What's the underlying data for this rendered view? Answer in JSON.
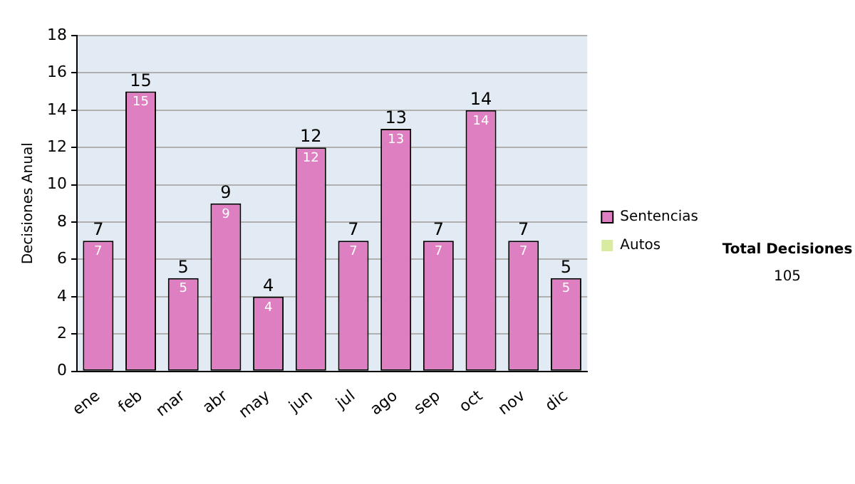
{
  "chart_data": {
    "type": "bar",
    "stacked": true,
    "ylabel": "Decisiones Anual",
    "categories": [
      "ene",
      "feb",
      "mar",
      "abr",
      "may",
      "jun",
      "jul",
      "ago",
      "sep",
      "oct",
      "nov",
      "dic"
    ],
    "series": [
      {
        "name": "Sentencias",
        "color": "#dd7fc0",
        "values": [
          7,
          15,
          5,
          9,
          4,
          12,
          7,
          13,
          7,
          14,
          7,
          5
        ],
        "value_labels": [
          "7",
          "15",
          "5",
          "9",
          "4",
          "12",
          "7",
          "13",
          "7",
          "14",
          "7",
          "5"
        ]
      },
      {
        "name": "Autos",
        "color": "#d8eba0",
        "values": [
          0,
          0,
          0,
          0,
          0,
          0,
          0,
          0,
          0,
          0,
          0,
          0
        ]
      }
    ],
    "totals": [
      "7",
      "15",
      "5",
      "9",
      "4",
      "12",
      "7",
      "13",
      "7",
      "14",
      "7",
      "5"
    ],
    "ylim": [
      0,
      18
    ],
    "yticks": [
      0,
      2,
      4,
      6,
      8,
      10,
      12,
      14,
      16,
      18
    ],
    "grid": "y",
    "legend": "right",
    "annotations": [
      "Total Decisiones",
      "105"
    ]
  }
}
